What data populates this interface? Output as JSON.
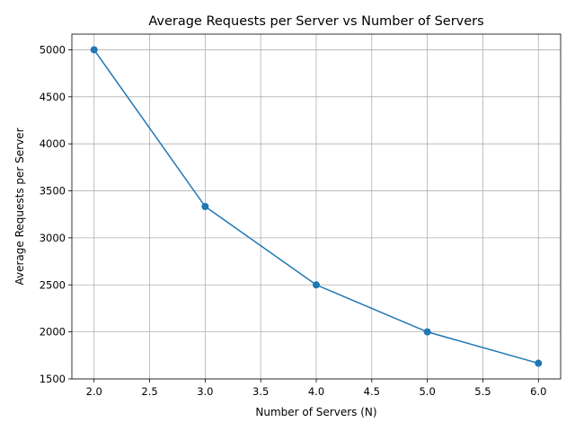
{
  "chart_data": {
    "type": "line",
    "title": "Average Requests per Server vs Number of Servers",
    "xlabel": "Number of Servers (N)",
    "ylabel": "Average Requests per Server",
    "x": [
      2,
      3,
      4,
      5,
      6
    ],
    "series": [
      {
        "values": [
          5000,
          3333.33,
          2500,
          2000,
          1666.67
        ],
        "color": "#1f77b4",
        "marker": "circle"
      }
    ],
    "xlim": [
      1.8,
      6.2
    ],
    "ylim": [
      1500,
      5166.67
    ],
    "xticks": [
      2.0,
      2.5,
      3.0,
      3.5,
      4.0,
      4.5,
      5.0,
      5.5,
      6.0
    ],
    "xtick_labels": [
      "2.0",
      "2.5",
      "3.0",
      "3.5",
      "4.0",
      "4.5",
      "5.0",
      "5.5",
      "6.0"
    ],
    "yticks": [
      1500,
      2000,
      2500,
      3000,
      3500,
      4000,
      4500,
      5000
    ],
    "ytick_labels": [
      "1500",
      "2000",
      "2500",
      "3000",
      "3500",
      "4000",
      "4500",
      "5000"
    ],
    "grid": true,
    "legend": "none"
  }
}
